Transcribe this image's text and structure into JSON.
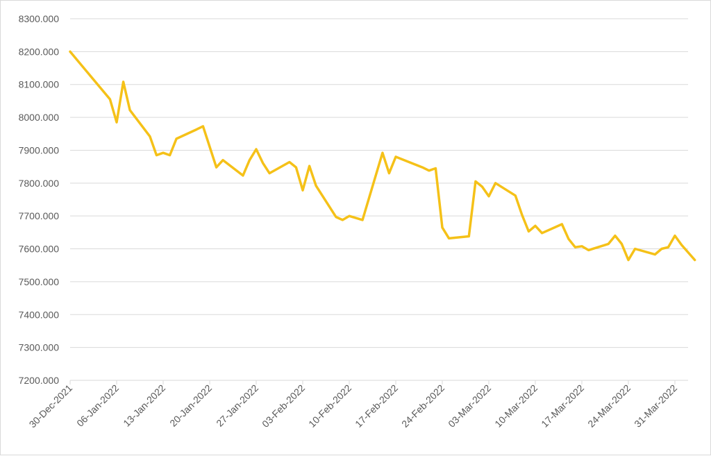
{
  "chart_data": {
    "type": "line",
    "title": "",
    "xlabel": "",
    "ylabel": "",
    "ylim": [
      7200,
      8300
    ],
    "y_ticks": [
      "7200.000",
      "7300.000",
      "7400.000",
      "7500.000",
      "7600.000",
      "7700.000",
      "7800.000",
      "7900.000",
      "8000.000",
      "8100.000",
      "8200.000",
      "8300.000"
    ],
    "x_tick_labels": [
      "30-Dec-2021",
      "06-Jan-2022",
      "13-Jan-2022",
      "20-Jan-2022",
      "27-Jan-2022",
      "03-Feb-2022",
      "10-Feb-2022",
      "17-Feb-2022",
      "24-Feb-2022",
      "03-Mar-2022",
      "10-Mar-2022",
      "17-Mar-2022",
      "24-Mar-2022",
      "31-Mar-2022"
    ],
    "x_range": [
      "30-Dec-2021",
      "03-Apr-2022"
    ],
    "grid": "horizontal",
    "legend": "none",
    "line_color": "#f5c118",
    "series": [
      {
        "x": [
          "30-Dec-2021",
          "05-Jan-2022",
          "06-Jan-2022",
          "07-Jan-2022",
          "08-Jan-2022",
          "11-Jan-2022",
          "12-Jan-2022",
          "13-Jan-2022",
          "14-Jan-2022",
          "15-Jan-2022",
          "18-Jan-2022",
          "19-Jan-2022",
          "21-Jan-2022",
          "22-Jan-2022",
          "25-Jan-2022",
          "26-Jan-2022",
          "27-Jan-2022",
          "28-Jan-2022",
          "29-Jan-2022",
          "01-Feb-2022",
          "02-Feb-2022",
          "03-Feb-2022",
          "04-Feb-2022",
          "05-Feb-2022",
          "08-Feb-2022",
          "09-Feb-2022",
          "10-Feb-2022",
          "12-Feb-2022",
          "15-Feb-2022",
          "16-Feb-2022",
          "17-Feb-2022",
          "18-Feb-2022",
          "21-Feb-2022",
          "22-Feb-2022",
          "23-Feb-2022",
          "24-Feb-2022",
          "25-Feb-2022",
          "28-Feb-2022",
          "01-Mar-2022",
          "02-Mar-2022",
          "03-Mar-2022",
          "04-Mar-2022",
          "07-Mar-2022",
          "08-Mar-2022",
          "09-Mar-2022",
          "10-Mar-2022",
          "11-Mar-2022",
          "14-Mar-2022",
          "15-Mar-2022",
          "16-Mar-2022",
          "17-Mar-2022",
          "18-Mar-2022",
          "21-Mar-2022",
          "22-Mar-2022",
          "23-Mar-2022",
          "24-Mar-2022",
          "25-Mar-2022",
          "28-Mar-2022",
          "29-Mar-2022",
          "30-Mar-2022",
          "31-Mar-2022",
          "01-Apr-2022",
          "03-Apr-2022"
        ],
        "values": [
          8200,
          8055,
          7985,
          8108,
          8022,
          7942,
          7885,
          7892,
          7885,
          7935,
          7963,
          7973,
          7848,
          7870,
          7823,
          7870,
          7903,
          7861,
          7830,
          7864,
          7848,
          7778,
          7852,
          7792,
          7697,
          7688,
          7700,
          7688,
          7892,
          7830,
          7880,
          7872,
          7848,
          7838,
          7845,
          7665,
          7632,
          7638,
          7805,
          7789,
          7760,
          7800,
          7762,
          7703,
          7653,
          7670,
          7648,
          7675,
          7630,
          7605,
          7608,
          7596,
          7615,
          7640,
          7615,
          7566,
          7600,
          7583,
          7600,
          7605,
          7640,
          7612,
          7566
        ]
      }
    ]
  }
}
